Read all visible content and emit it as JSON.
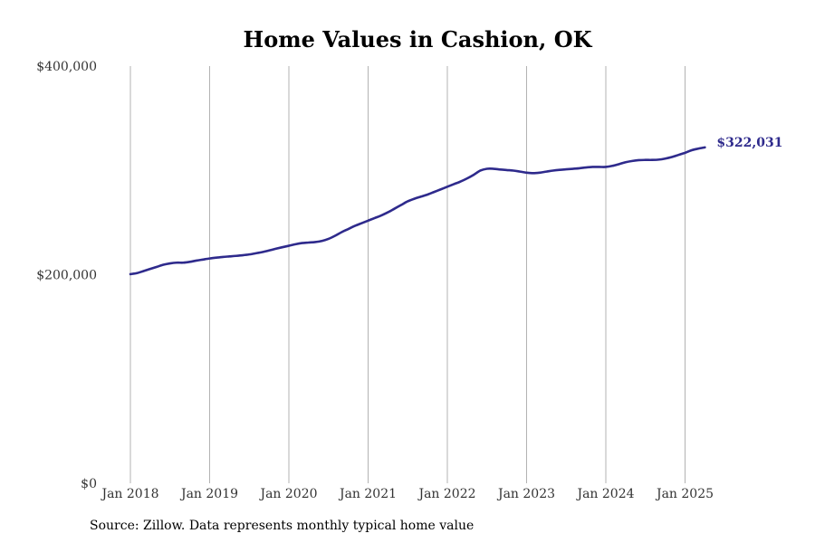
{
  "chart_data": {
    "type": "line",
    "title": "Home Values in Cashion, OK",
    "xlabel": "",
    "ylabel": "",
    "xlim": [
      "2018-01",
      "2025-12"
    ],
    "ylim": [
      0,
      400000
    ],
    "x_ticks": [
      "Jan 2018",
      "Jan 2019",
      "Jan 2020",
      "Jan 2021",
      "Jan 2022",
      "Jan 2023",
      "Jan 2024",
      "Jan 2025"
    ],
    "y_ticks": [
      "$0",
      "$200,000",
      "$400,000"
    ],
    "grid": "vertical",
    "series": [
      {
        "color": "#2e2a8c",
        "end_label": "$322,031",
        "points": [
          [
            "2018-01",
            200500
          ],
          [
            "2018-02",
            201500
          ],
          [
            "2018-03",
            203500
          ],
          [
            "2018-04",
            205500
          ],
          [
            "2018-05",
            207500
          ],
          [
            "2018-06",
            209500
          ],
          [
            "2018-07",
            210800
          ],
          [
            "2018-08",
            211500
          ],
          [
            "2018-09",
            211500
          ],
          [
            "2018-10",
            212300
          ],
          [
            "2018-11",
            213500
          ],
          [
            "2018-12",
            214500
          ],
          [
            "2019-01",
            215500
          ],
          [
            "2019-02",
            216300
          ],
          [
            "2019-03",
            217000
          ],
          [
            "2019-04",
            217500
          ],
          [
            "2019-05",
            218000
          ],
          [
            "2019-06",
            218600
          ],
          [
            "2019-07",
            219400
          ],
          [
            "2019-08",
            220500
          ],
          [
            "2019-09",
            221700
          ],
          [
            "2019-10",
            223200
          ],
          [
            "2019-11",
            224800
          ],
          [
            "2019-12",
            226300
          ],
          [
            "2020-01",
            227700
          ],
          [
            "2020-02",
            229200
          ],
          [
            "2020-03",
            230300
          ],
          [
            "2020-04",
            230800
          ],
          [
            "2020-05",
            231300
          ],
          [
            "2020-06",
            232300
          ],
          [
            "2020-07",
            234300
          ],
          [
            "2020-08",
            237300
          ],
          [
            "2020-09",
            240800
          ],
          [
            "2020-10",
            243800
          ],
          [
            "2020-11",
            246800
          ],
          [
            "2020-12",
            249300
          ],
          [
            "2021-01",
            251800
          ],
          [
            "2021-02",
            254300
          ],
          [
            "2021-03",
            256800
          ],
          [
            "2021-04",
            259800
          ],
          [
            "2021-05",
            263300
          ],
          [
            "2021-06",
            266800
          ],
          [
            "2021-07",
            270300
          ],
          [
            "2021-08",
            272800
          ],
          [
            "2021-09",
            274800
          ],
          [
            "2021-10",
            276800
          ],
          [
            "2021-11",
            279300
          ],
          [
            "2021-12",
            281800
          ],
          [
            "2022-01",
            284300
          ],
          [
            "2022-02",
            286800
          ],
          [
            "2022-03",
            289300
          ],
          [
            "2022-04",
            292300
          ],
          [
            "2022-05",
            295800
          ],
          [
            "2022-06",
            299800
          ],
          [
            "2022-07",
            301500
          ],
          [
            "2022-08",
            301500
          ],
          [
            "2022-09",
            300800
          ],
          [
            "2022-10",
            300300
          ],
          [
            "2022-11",
            299800
          ],
          [
            "2022-12",
            298800
          ],
          [
            "2023-01",
            297800
          ],
          [
            "2023-02",
            297300
          ],
          [
            "2023-03",
            297800
          ],
          [
            "2023-04",
            298800
          ],
          [
            "2023-05",
            299800
          ],
          [
            "2023-06",
            300500
          ],
          [
            "2023-07",
            301000
          ],
          [
            "2023-08",
            301500
          ],
          [
            "2023-09",
            302000
          ],
          [
            "2023-10",
            302800
          ],
          [
            "2023-11",
            303300
          ],
          [
            "2023-12",
            303300
          ],
          [
            "2024-01",
            303300
          ],
          [
            "2024-02",
            304300
          ],
          [
            "2024-03",
            306000
          ],
          [
            "2024-04",
            307800
          ],
          [
            "2024-05",
            309000
          ],
          [
            "2024-06",
            309800
          ],
          [
            "2024-07",
            310000
          ],
          [
            "2024-08",
            310000
          ],
          [
            "2024-09",
            310300
          ],
          [
            "2024-10",
            311300
          ],
          [
            "2024-11",
            312800
          ],
          [
            "2024-12",
            314800
          ],
          [
            "2025-01",
            316800
          ],
          [
            "2025-02",
            319300
          ],
          [
            "2025-03",
            320800
          ],
          [
            "2025-04",
            322031
          ]
        ]
      }
    ]
  },
  "footer": {
    "source": "Source: Zillow. Data represents monthly typical home value"
  }
}
